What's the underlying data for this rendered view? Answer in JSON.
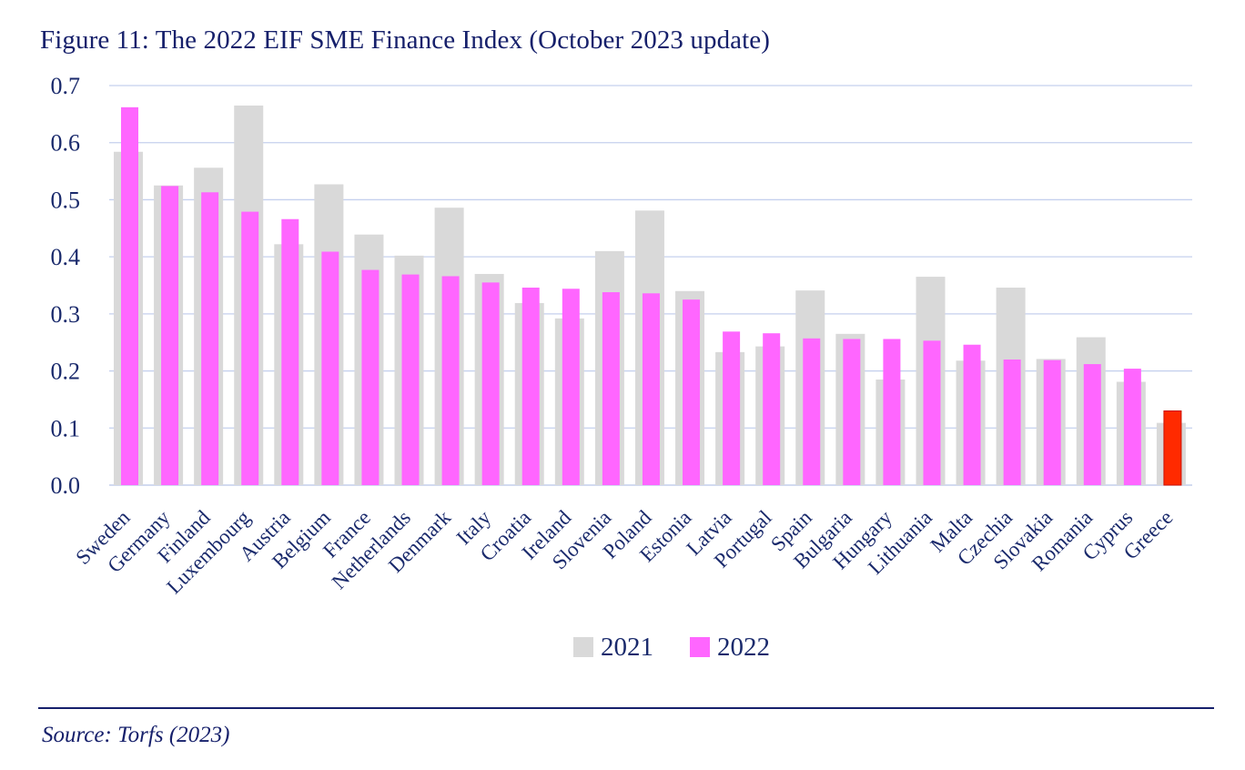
{
  "title": "Figure 11: The 2022 EIF SME Finance Index (October 2023 update)",
  "source": "Source: Torfs (2023)",
  "colors": {
    "s2021": "#d9d9d9",
    "s2022": "#ff66ff",
    "highlight": "#ff2a00",
    "grid": "#c5d0ee",
    "text": "#1a2a6c"
  },
  "chart_data": {
    "type": "bar",
    "categories": [
      "Sweden",
      "Germany",
      "Finland",
      "Luxembourg",
      "Austria",
      "Belgium",
      "France",
      "Netherlands",
      "Denmark",
      "Italy",
      "Croatia",
      "Ireland",
      "Slovenia",
      "Poland",
      "Estonia",
      "Latvia",
      "Portugal",
      "Spain",
      "Bulgaria",
      "Hungary",
      "Lithuania",
      "Malta",
      "Czechia",
      "Slovakia",
      "Romania",
      "Cyprus",
      "Greece"
    ],
    "series": [
      {
        "name": "2021",
        "values": [
          0.584,
          0.525,
          0.556,
          0.665,
          0.422,
          0.527,
          0.439,
          0.402,
          0.486,
          0.37,
          0.319,
          0.292,
          0.41,
          0.481,
          0.34,
          0.233,
          0.243,
          0.341,
          0.265,
          0.185,
          0.365,
          0.218,
          0.346,
          0.221,
          0.259,
          0.181,
          0.109
        ]
      },
      {
        "name": "2022",
        "values": [
          0.662,
          0.524,
          0.513,
          0.479,
          0.466,
          0.409,
          0.377,
          0.369,
          0.366,
          0.355,
          0.346,
          0.344,
          0.338,
          0.336,
          0.325,
          0.269,
          0.266,
          0.257,
          0.256,
          0.256,
          0.253,
          0.246,
          0.22,
          0.219,
          0.212,
          0.204,
          0.13
        ]
      }
    ],
    "highlight_category": "Greece",
    "ylim": [
      0,
      0.7
    ],
    "yticks": [
      "0.0",
      "0.1",
      "0.2",
      "0.3",
      "0.4",
      "0.5",
      "0.6",
      "0.7"
    ],
    "grid": true,
    "legend": "bottom-center",
    "xlabel": "",
    "ylabel": ""
  }
}
